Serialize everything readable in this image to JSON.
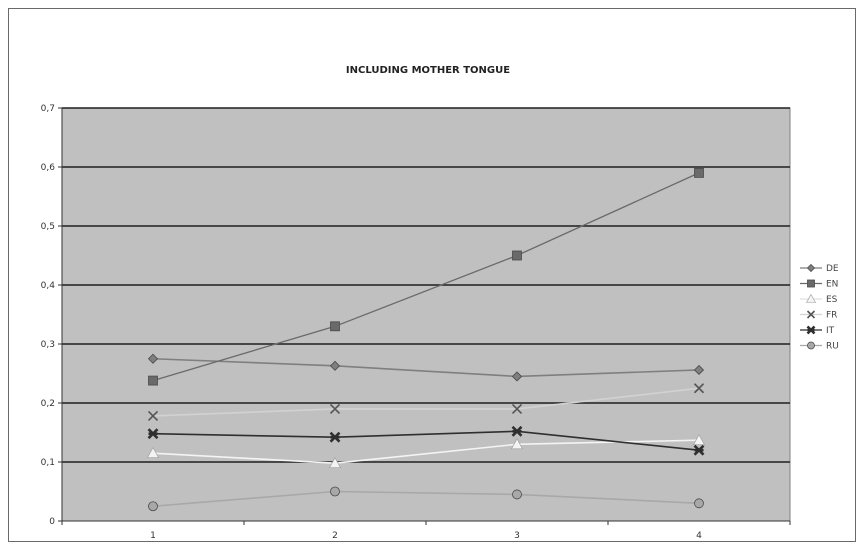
{
  "chart_data": {
    "type": "line",
    "title": "INCLUDING MOTHER TONGUE",
    "xlabel": "",
    "ylabel": "",
    "categories": [
      "1",
      "2",
      "3",
      "4"
    ],
    "ylim": [
      0,
      0.7
    ],
    "yticks": [
      "0",
      "0,1",
      "0,2",
      "0,3",
      "0,4",
      "0,5",
      "0,6",
      "0,7"
    ],
    "grid": true,
    "legend_position": "right",
    "plot_background": "#c0c0c0",
    "series": [
      {
        "name": "DE",
        "values": [
          0.275,
          0.263,
          0.245,
          0.256
        ],
        "color": "#7f7f7f",
        "marker": "diamond"
      },
      {
        "name": "EN",
        "values": [
          0.238,
          0.33,
          0.45,
          0.59
        ],
        "color": "#6a6a6a",
        "marker": "square"
      },
      {
        "name": "ES",
        "values": [
          0.115,
          0.098,
          0.13,
          0.137
        ],
        "color": "#f4f4f4",
        "marker": "triangle"
      },
      {
        "name": "FR",
        "values": [
          0.178,
          0.19,
          0.19,
          0.225
        ],
        "color": "#d2d2d2",
        "marker": "x"
      },
      {
        "name": "IT",
        "values": [
          0.148,
          0.142,
          0.152,
          0.12
        ],
        "color": "#2f2f2f",
        "marker": "star"
      },
      {
        "name": "RU",
        "values": [
          0.025,
          0.05,
          0.045,
          0.03
        ],
        "color": "#a8a8a8",
        "marker": "circle"
      }
    ]
  }
}
